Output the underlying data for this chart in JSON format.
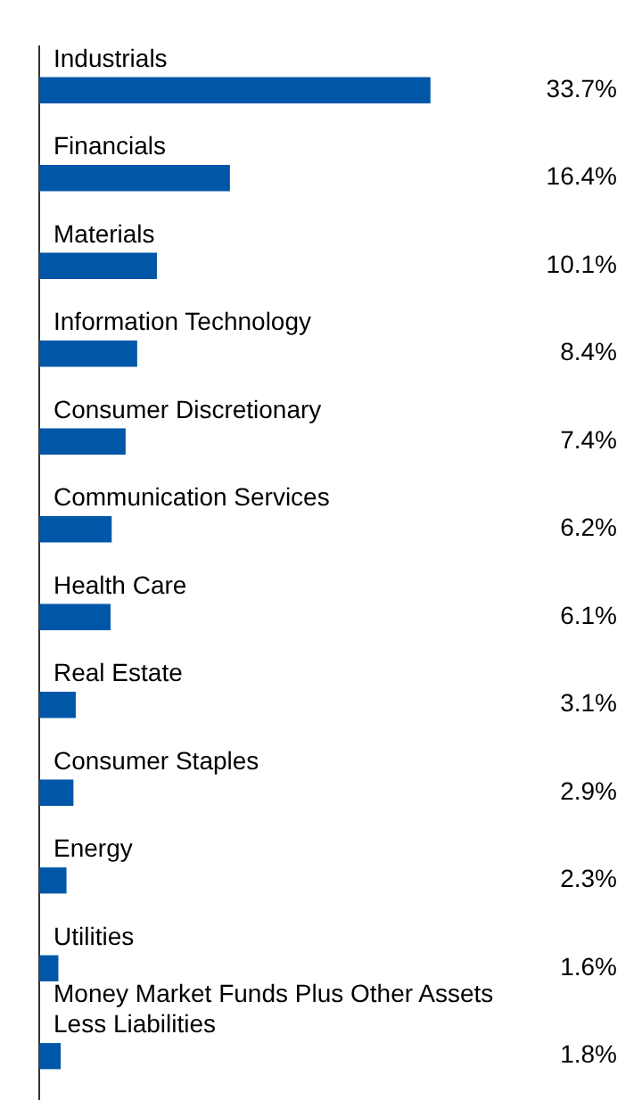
{
  "chart_data": {
    "type": "bar",
    "orientation": "horizontal",
    "categories": [
      "Industrials",
      "Financials",
      "Materials",
      "Information Technology",
      "Consumer Discretionary",
      "Communication Services",
      "Health Care",
      "Real Estate",
      "Consumer Staples",
      "Energy",
      "Utilities",
      "Money Market Funds Plus Other Assets Less Liabilities"
    ],
    "values": [
      33.7,
      16.4,
      10.1,
      8.4,
      7.4,
      6.2,
      6.1,
      3.1,
      2.9,
      2.3,
      1.6,
      1.8
    ],
    "value_labels": [
      "33.7%",
      "16.4%",
      "10.1%",
      "8.4%",
      "7.4%",
      "6.2%",
      "6.1%",
      "3.1%",
      "2.9%",
      "2.3%",
      "1.6%",
      "1.8%"
    ],
    "color": "#0057a8",
    "grid": false,
    "legend": false
  }
}
